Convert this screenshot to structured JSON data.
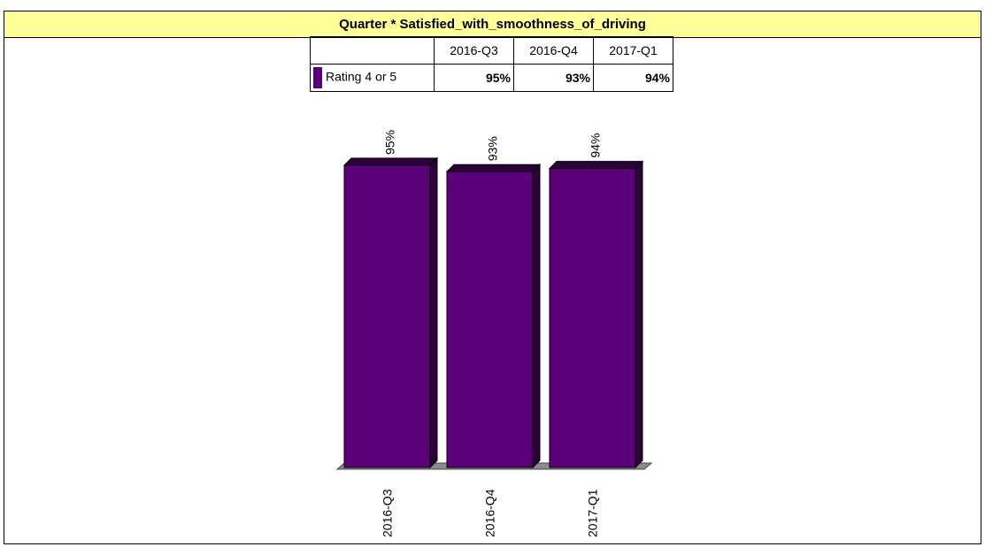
{
  "title": "Quarter * Satisfied_with_smoothness_of_driving",
  "table": {
    "headers": [
      "2016-Q3",
      "2016-Q4",
      "2017-Q1"
    ],
    "row_label": "Rating 4 or 5",
    "row_values": [
      "95%",
      "93%",
      "94%"
    ]
  },
  "colors": {
    "bar": "#5c0079",
    "bar_dark": "#2c003a",
    "title_bg": "#ffff99"
  },
  "chart_data": {
    "type": "bar",
    "title": "Quarter * Satisfied_with_smoothness_of_driving",
    "categories": [
      "2016-Q3",
      "2016-Q4",
      "2017-Q1"
    ],
    "series": [
      {
        "name": "Rating 4 or 5",
        "values": [
          95,
          93,
          94
        ]
      }
    ],
    "data_labels": [
      "95%",
      "93%",
      "94%"
    ],
    "ylim": [
      0,
      100
    ],
    "xlabel": "",
    "ylabel": "",
    "grid": false,
    "legend": "table"
  }
}
